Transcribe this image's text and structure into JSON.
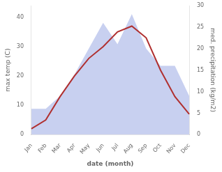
{
  "chart_data": {
    "type": "line",
    "xlabel": "date (month)",
    "ylabel": "max temp (C)",
    "y2label": "med. precipitation (kg/m2)",
    "categories": [
      "Jan",
      "Feb",
      "Mar",
      "Apr",
      "May",
      "Jun",
      "Jul",
      "Aug",
      "Sep",
      "Oct",
      "Nov",
      "Dec"
    ],
    "series": [
      {
        "type": "line",
        "color": "#b03030",
        "values": [
          2,
          5,
          13,
          20,
          26,
          30,
          35,
          37,
          33,
          22,
          13,
          7
        ]
      },
      {
        "type": "area",
        "color": "#c8d0f0",
        "axis": "y2",
        "values": [
          6,
          6,
          9,
          14,
          20,
          26,
          21,
          28,
          20,
          16,
          16,
          9
        ]
      }
    ],
    "ylim": [
      0,
      44
    ],
    "yticks": [
      0,
      10,
      20,
      30,
      40
    ],
    "y2lim": [
      0,
      30
    ],
    "y2ticks": [
      0,
      5,
      10,
      15,
      20,
      25,
      30
    ],
    "grid": false
  }
}
